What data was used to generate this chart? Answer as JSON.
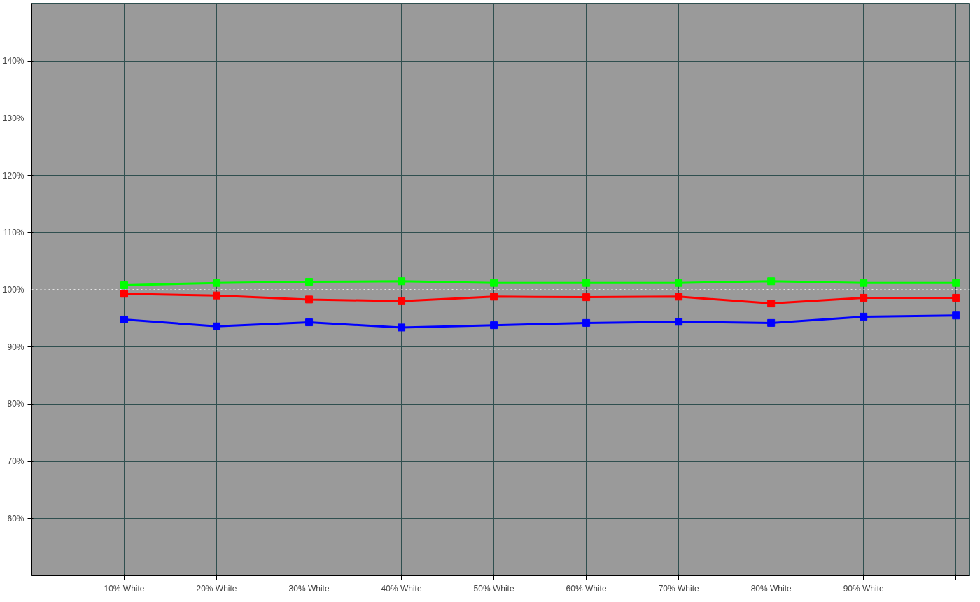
{
  "chart_data": {
    "type": "line",
    "categories": [
      "10% White",
      "20% White",
      "30% White",
      "40% White",
      "50% White",
      "60% White",
      "70% White",
      "80% White",
      "90% White",
      null
    ],
    "series": [
      {
        "color": "#00ff00",
        "values": [
          100.8,
          101.2,
          101.4,
          101.5,
          101.2,
          101.2,
          101.2,
          101.5,
          101.2,
          101.2
        ]
      },
      {
        "color": "#ff0000",
        "values": [
          99.3,
          99.0,
          98.3,
          98.0,
          98.8,
          98.7,
          98.8,
          97.6,
          98.6,
          98.6
        ]
      },
      {
        "color": "#0000ff",
        "values": [
          94.8,
          93.6,
          94.3,
          93.4,
          93.8,
          94.2,
          94.4,
          94.2,
          95.3,
          95.5
        ]
      }
    ],
    "ylim": [
      50,
      150
    ],
    "yticks": [
      {
        "value": 60,
        "label": "60%"
      },
      {
        "value": 70,
        "label": "70%"
      },
      {
        "value": 80,
        "label": "80%"
      },
      {
        "value": 90,
        "label": "90%"
      },
      {
        "value": 100,
        "label": "100%"
      },
      {
        "value": 110,
        "label": "110%"
      },
      {
        "value": 120,
        "label": "120%"
      },
      {
        "value": 130,
        "label": "130%"
      },
      {
        "value": 140,
        "label": "140%"
      }
    ],
    "ref_lines": [
      {
        "axis": "y",
        "value": 100,
        "color": "#ffffff",
        "line_style": "dotted"
      }
    ],
    "grid": true,
    "marker": "square",
    "line_style": "solid"
  }
}
